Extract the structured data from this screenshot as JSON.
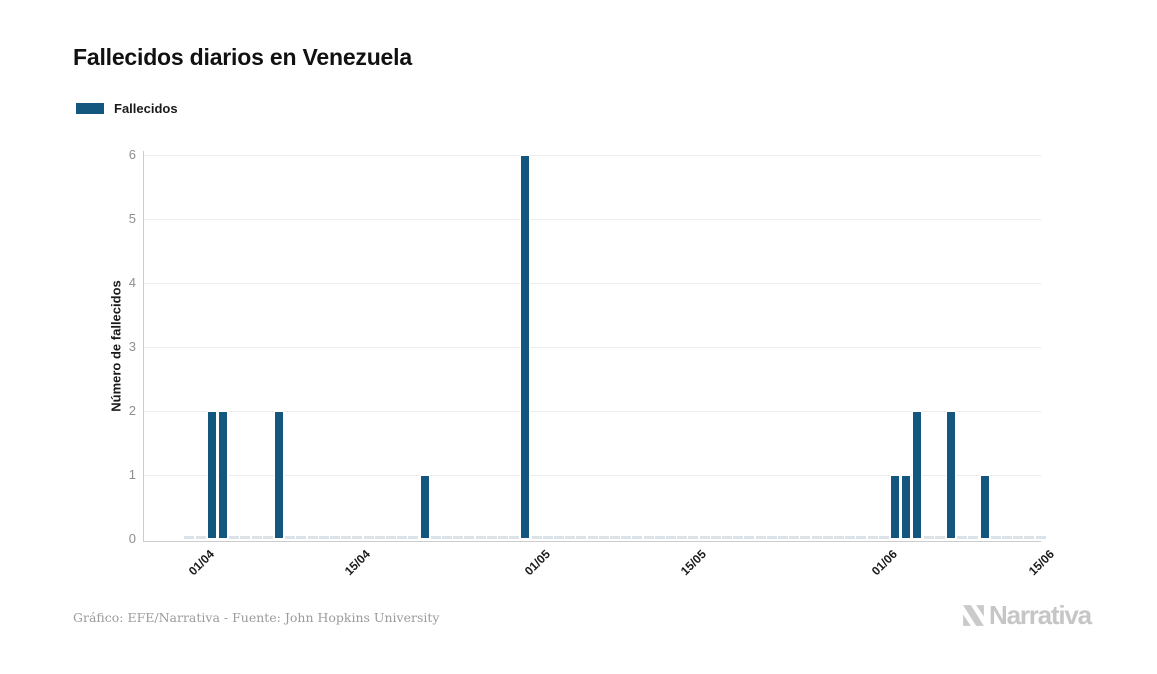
{
  "page": {
    "background": "#ffffff"
  },
  "header": {
    "title": "Fallecidos diarios en Venezuela"
  },
  "legend": {
    "items": [
      {
        "label": "Fallecidos",
        "color": "#14577E"
      }
    ]
  },
  "footer": {
    "credit": "Gráfico: EFE/Narrativa - Fuente: John Hopkins University"
  },
  "branding": {
    "logo_text": "Narrativa"
  },
  "colors": {
    "bar": "#14577E",
    "grid": "#ededed",
    "axis_line": "#cccccc",
    "zero_dash": "#dce3e8",
    "y_tick_text": "#8e8e8e",
    "x_tick_text": "#1a1a1a",
    "title_text": "#111111",
    "footer_text": "#9b9b9b",
    "logo_text": "#c6c6c6"
  },
  "chart_data": {
    "type": "bar",
    "title": "Fallecidos diarios en Venezuela",
    "xlabel": "",
    "ylabel": "Número de fallecidos",
    "ylim": [
      0,
      6
    ],
    "y_ticks": [
      0,
      1,
      2,
      3,
      4,
      5,
      6
    ],
    "x_tick_labels": [
      "01/04",
      "15/04",
      "01/05",
      "15/05",
      "01/06",
      "15/06"
    ],
    "date_format": "DD/MM",
    "grid": "horizontal",
    "legend_position": "top-left",
    "series": [
      {
        "name": "Fallecidos",
        "color": "#14577E",
        "date_range": {
          "start": "30/03",
          "end": "14/06"
        },
        "values_by_date": {
          "01/04": 2,
          "02/04": 2,
          "07/04": 2,
          "20/04": 1,
          "29/04": 6,
          "01/06": 1,
          "02/06": 1,
          "03/06": 2,
          "06/06": 2,
          "09/06": 1
        },
        "all_other_dates_value": 0
      }
    ]
  }
}
